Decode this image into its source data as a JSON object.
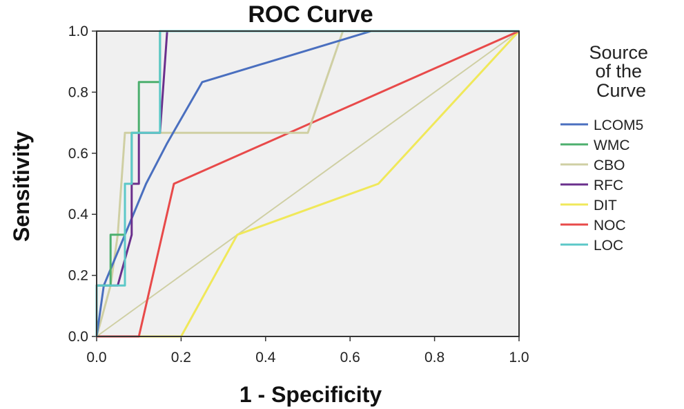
{
  "chart_data": {
    "type": "line",
    "title": "ROC Curve",
    "xlabel": "1 - Specificity",
    "ylabel": "Sensitivity",
    "xlim": [
      0,
      1
    ],
    "ylim": [
      0,
      1
    ],
    "xticks": [
      "0.0",
      "0.2",
      "0.4",
      "0.6",
      "0.8",
      "1.0"
    ],
    "yticks": [
      "0.0",
      "0.2",
      "0.4",
      "0.6",
      "0.8",
      "1.0"
    ],
    "grid": false,
    "legend_title": "Source of the Curve",
    "legend_position": "right",
    "plot_background": "#f0f0f0",
    "series": [
      {
        "name": "LCOM5",
        "color": "#4a6fbf",
        "points": [
          [
            0,
            0
          ],
          [
            0.017,
            0.167
          ],
          [
            0.067,
            0.333
          ],
          [
            0.117,
            0.5
          ],
          [
            0.167,
            0.633
          ],
          [
            0.25,
            0.833
          ],
          [
            0.65,
            1.0
          ],
          [
            1.0,
            1.0
          ]
        ]
      },
      {
        "name": "WMC",
        "color": "#4caf6e",
        "points": [
          [
            0,
            0
          ],
          [
            0,
            0.167
          ],
          [
            0.033,
            0.167
          ],
          [
            0.033,
            0.333
          ],
          [
            0.067,
            0.333
          ],
          [
            0.067,
            0.5
          ],
          [
            0.083,
            0.5
          ],
          [
            0.083,
            0.667
          ],
          [
            0.1,
            0.667
          ],
          [
            0.1,
            0.833
          ],
          [
            0.15,
            0.833
          ],
          [
            0.15,
            1.0
          ],
          [
            1.0,
            1.0
          ]
        ]
      },
      {
        "name": "CBO",
        "color": "#cfcfa3",
        "points": [
          [
            0,
            0
          ],
          [
            0.033,
            0.167
          ],
          [
            0.05,
            0.333
          ],
          [
            0.067,
            0.667
          ],
          [
            0.5,
            0.667
          ],
          [
            0.583,
            1.0
          ],
          [
            1.0,
            1.0
          ]
        ]
      },
      {
        "name": "RFC",
        "color": "#6a2f8c",
        "points": [
          [
            0,
            0
          ],
          [
            0,
            0.167
          ],
          [
            0.05,
            0.167
          ],
          [
            0.083,
            0.333
          ],
          [
            0.083,
            0.5
          ],
          [
            0.1,
            0.5
          ],
          [
            0.1,
            0.667
          ],
          [
            0.15,
            0.667
          ],
          [
            0.167,
            1.0
          ],
          [
            1.0,
            1.0
          ]
        ]
      },
      {
        "name": "DIT",
        "color": "#f0e85a",
        "points": [
          [
            0,
            0
          ],
          [
            0.2,
            0
          ],
          [
            0.333,
            0.333
          ],
          [
            0.667,
            0.5
          ],
          [
            1.0,
            1.0
          ]
        ]
      },
      {
        "name": "NOC",
        "color": "#e84a4a",
        "points": [
          [
            0,
            0
          ],
          [
            0.1,
            0
          ],
          [
            0.183,
            0.5
          ],
          [
            1.0,
            1.0
          ]
        ]
      },
      {
        "name": "LOC",
        "color": "#5cc8c8",
        "points": [
          [
            0,
            0
          ],
          [
            0,
            0.167
          ],
          [
            0.067,
            0.167
          ],
          [
            0.067,
            0.5
          ],
          [
            0.083,
            0.5
          ],
          [
            0.083,
            0.667
          ],
          [
            0.15,
            0.667
          ],
          [
            0.15,
            1.0
          ],
          [
            1.0,
            1.0
          ]
        ]
      }
    ]
  }
}
